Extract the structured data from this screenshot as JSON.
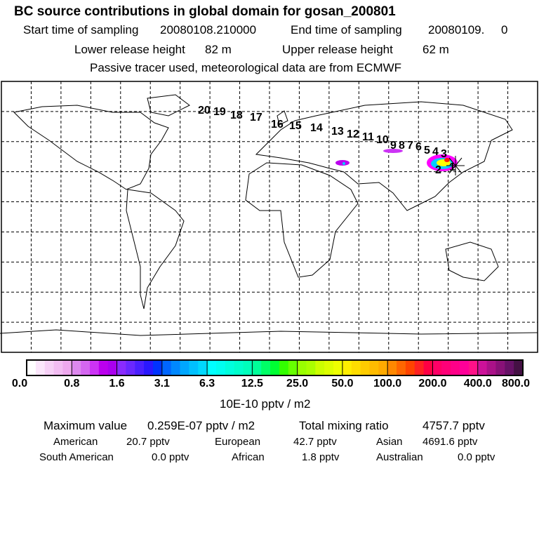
{
  "header": {
    "title": "BC  source contributions in global domain for gosan_200801",
    "line1_label_start": "Start time of sampling",
    "start_time": "20080108.210000",
    "line1_label_end": "End time of sampling",
    "end_time": "20080109.     0",
    "line2_lower_label": "Lower release height",
    "lower_height": "82 m",
    "line2_upper_label": "Upper release height",
    "upper_height": "62 m",
    "line3": "Passive tracer used, meteorological data are from ECMWF"
  },
  "map": {
    "trajectory_labels": [
      "1",
      "2",
      "3",
      "4",
      "5",
      "6",
      "7",
      "8",
      "9",
      "10",
      "11",
      "12",
      "13",
      "14",
      "15",
      "16",
      "17",
      "18",
      "19",
      "20"
    ]
  },
  "colorbar": {
    "ticks": [
      "0.0",
      "0.8",
      "1.6",
      "3.1",
      "6.3",
      "12.5",
      "25.0",
      "50.0",
      "100.0",
      "200.0",
      "400.0",
      "800.0"
    ],
    "unit": "10E-10 pptv / m2",
    "colors": [
      [
        "#ffffff",
        "#fbe6fb",
        "#f6d0f6",
        "#f2bcf2",
        "#eea8ee"
      ],
      [
        "#dd88ee",
        "#d466f0",
        "#cc33f5",
        "#bb00ee",
        "#aa00ee"
      ],
      [
        "#8a2bff",
        "#6a28ff",
        "#4a20ff",
        "#2a18ff",
        "#0033ff"
      ],
      [
        "#0066ff",
        "#0088ff",
        "#00a6ff",
        "#00c0ff",
        "#00d8ff"
      ],
      [
        "#00ffff",
        "#00fff0",
        "#00ffdd",
        "#00ffcc",
        "#00ffbb"
      ],
      [
        "#00ff99",
        "#00ff66",
        "#00ff33",
        "#33ff00",
        "#66ff00"
      ],
      [
        "#99ff00",
        "#aaff00",
        "#ccff00",
        "#ddff00",
        "#eeff00"
      ],
      [
        "#ffee00",
        "#ffdd00",
        "#ffcc00",
        "#ffbb00",
        "#ffaa00"
      ],
      [
        "#ff8800",
        "#ff6600",
        "#ff4400",
        "#ff2222",
        "#ff0044"
      ],
      [
        "#ff0066",
        "#ff0077",
        "#ff0088",
        "#ff0099",
        "#ff1188"
      ],
      [
        "#cc1199",
        "#aa1188",
        "#881177",
        "#661166",
        "#441144"
      ]
    ]
  },
  "summary": {
    "max_label": "Maximum value",
    "max_value": "0.259E-07 pptv / m2",
    "total_label": "Total mixing ratio",
    "total_value": "4757.7 pptv",
    "regions": [
      {
        "name": "American",
        "value": "20.7 pptv"
      },
      {
        "name": "European",
        "value": "42.7 pptv"
      },
      {
        "name": "Asian",
        "value": "4691.6 pptv"
      },
      {
        "name": "South American",
        "value": "0.0 pptv"
      },
      {
        "name": "African",
        "value": "1.8 pptv"
      },
      {
        "name": "Australian",
        "value": "0.0 pptv"
      }
    ]
  }
}
